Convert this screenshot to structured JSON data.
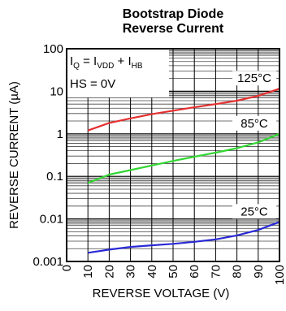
{
  "chart_data": {
    "type": "line",
    "title_lines": [
      "Bootstrap Diode",
      "Reverse Current"
    ],
    "xlabel": "REVERSE VOLTAGE (V)",
    "ylabel": "REVERSE CURRENT (µA)",
    "x_scale": "linear",
    "y_scale": "log",
    "xlim": [
      0,
      100
    ],
    "ylim": [
      0.001,
      100
    ],
    "x_ticks": [
      "0",
      "10",
      "20",
      "30",
      "40",
      "50",
      "60",
      "70",
      "80",
      "90",
      "100"
    ],
    "y_ticks": [
      "0.001",
      "0.01",
      "0.1",
      "1",
      "10",
      "100"
    ],
    "grid": true,
    "annotation": {
      "line1_main": "I",
      "line1_sub1": "Q",
      "line1_mid": " = I",
      "line1_sub2": "VDD",
      "line1_plus": " + I",
      "line1_sub3": "HB",
      "line2": "HS = 0V"
    },
    "series": [
      {
        "name": "125°C",
        "color": "#e53030",
        "x": [
          10,
          20,
          30,
          40,
          50,
          60,
          70,
          80,
          90,
          100
        ],
        "y": [
          1.2,
          1.8,
          2.3,
          2.9,
          3.5,
          4.2,
          5.0,
          6.0,
          7.8,
          11.5
        ]
      },
      {
        "name": "85°C",
        "color": "#33d633",
        "x": [
          10,
          20,
          30,
          40,
          50,
          60,
          70,
          80,
          90,
          100
        ],
        "y": [
          0.07,
          0.11,
          0.14,
          0.18,
          0.23,
          0.29,
          0.36,
          0.46,
          0.63,
          1.0
        ]
      },
      {
        "name": "25°C",
        "color": "#2a2ad6",
        "x": [
          10,
          20,
          30,
          40,
          50,
          60,
          70,
          80,
          90,
          100
        ],
        "y": [
          0.0016,
          0.0019,
          0.0022,
          0.0024,
          0.0026,
          0.0029,
          0.0033,
          0.0041,
          0.0055,
          0.0085
        ]
      }
    ]
  }
}
